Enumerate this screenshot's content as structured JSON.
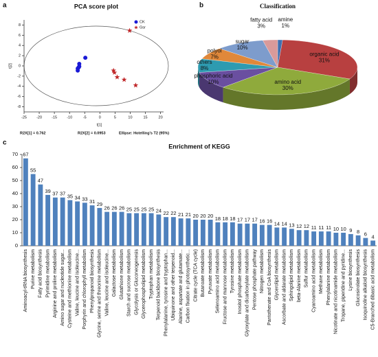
{
  "chart_data": [
    {
      "type": "scatter",
      "label": "a",
      "title": "PCA score plot",
      "xlabel": "t[1]",
      "ylabel": "t[2]",
      "xlim": [
        -25,
        21
      ],
      "ylim": [
        -9,
        9
      ],
      "xticks": [
        -25,
        -20,
        -15,
        -10,
        -5,
        0,
        5,
        10,
        15,
        20
      ],
      "yticks": [
        -8,
        -6,
        -4,
        -2,
        0,
        2,
        4,
        6,
        8
      ],
      "legend": "upper right",
      "series": [
        {
          "name": "CK",
          "color": "#1a1ad6",
          "marker": "circle",
          "x": [
            -4.8,
            -6.8,
            -6.8,
            -7.3,
            -7.3,
            -7.0
          ],
          "y": [
            1.6,
            0.4,
            -0.1,
            -0.5,
            -0.9,
            -0.3
          ]
        },
        {
          "name": "Gsr",
          "color": "#c0282a",
          "marker": "star",
          "x": [
            9.8,
            4.5,
            4.8,
            5.7,
            8.0,
            11.8
          ],
          "y": [
            6.9,
            -0.9,
            -1.3,
            -2.2,
            -2.7,
            -3.8
          ]
        }
      ],
      "annotations": [
        "R2X[1] = 0.762",
        "R2X[2] = 0.0953",
        "Ellipse: Hotelling's T2 (95%)"
      ]
    },
    {
      "type": "pie",
      "label": "b",
      "title": "Classification",
      "categories": [
        "amine",
        "organic acid",
        "amino acid",
        "phosphoric acid",
        "others",
        "polyol",
        "sugar",
        "fatty acid"
      ],
      "values": [
        1,
        31,
        30,
        10,
        8,
        7,
        10,
        3
      ],
      "value_labels": [
        "1%",
        "31%",
        "30%",
        "10%",
        "8%",
        "7%",
        "10%",
        "3%"
      ],
      "colors": [
        "#3f6fb0",
        "#b84040",
        "#8faa3c",
        "#6a4fa0",
        "#2e9bb0",
        "#e0883a",
        "#7d9ccc",
        "#d99a9a"
      ]
    },
    {
      "type": "bar",
      "label": "c",
      "title": "Enrichment of KEGG",
      "color": "#4f81bd",
      "ylim": [
        0,
        70
      ],
      "yticks": [
        0,
        10,
        20,
        30,
        40,
        50,
        60,
        70
      ],
      "categories": [
        "Aminoacyl-tRNA biosynthesis",
        "Purine metabolism",
        "Fatty acid biosynthesis",
        "Pyrimidine metabolism",
        "Arginine and proline metabolism",
        "Amino sugar and nucleotide sugar...",
        "Cysteine and methionine metabolism",
        "Valine, leucine and isoleucine...",
        "Porphyrin and chlorophyll metabolism",
        "Phenylpropanoid biosynthesis",
        "Glycine, serine and threonine metabolism",
        "Valine, leucine and isoleucine...",
        "Galactose metabolism",
        "Glutathione metabolism",
        "Starch and sucrose metabolism",
        "Glycolysis or Gluconeogenesis",
        "Glycerophospholipid metabolism",
        "Tryptophan metabolism",
        "Terpenoid backbone biosynthesis",
        "Phenylalanine, tyrosine and tryptophan...",
        "Ubiquinone and other terpenoid...",
        "Alanine, aspartate and glutamate...",
        "Carbon fixation in photosynthetic...",
        "Citrate cycle (TCA cycle)",
        "Butanoate metabolism",
        "Pyruvate metabolism",
        "Selenoamino acid metabolism",
        "Fructose and mannose metabolism",
        "Tyrosine metabolism",
        "Inositol phosphate metabolism",
        "Glyoxylate and dicarboxylate metabolism",
        "Pentose phosphate pathway",
        "Nitrogen metabolism",
        "Pantothenate and CoA biosynthesis",
        "Glycerolipid metabolism",
        "Ascorbate and aldarate metabolism",
        "Sphingolipid metabolism",
        "beta-Alanine metabolism",
        "Sulfur metabolism",
        "Cyanoamino acid metabolism",
        "Methane metabolism",
        "Phenylalanine metabolism",
        "Nicotinate and nicotinamide metabolism",
        "Tropane, piperidine and pyridine...",
        "Lysine biosynthesis",
        "Glucosinolate biosynthesis",
        "Isoquinoline alkaloid biosynthesis",
        "C5-Branched dibasic acid metabolism"
      ],
      "values": [
        67,
        55,
        47,
        39,
        37,
        37,
        35,
        34,
        33,
        31,
        29,
        26,
        26,
        26,
        25,
        25,
        25,
        25,
        24,
        22,
        22,
        21,
        21,
        20,
        20,
        20,
        18,
        18,
        18,
        17,
        17,
        17,
        16,
        16,
        14,
        14,
        13,
        12,
        12,
        11,
        11,
        11,
        10,
        10,
        9,
        8,
        6,
        4
      ]
    }
  ]
}
